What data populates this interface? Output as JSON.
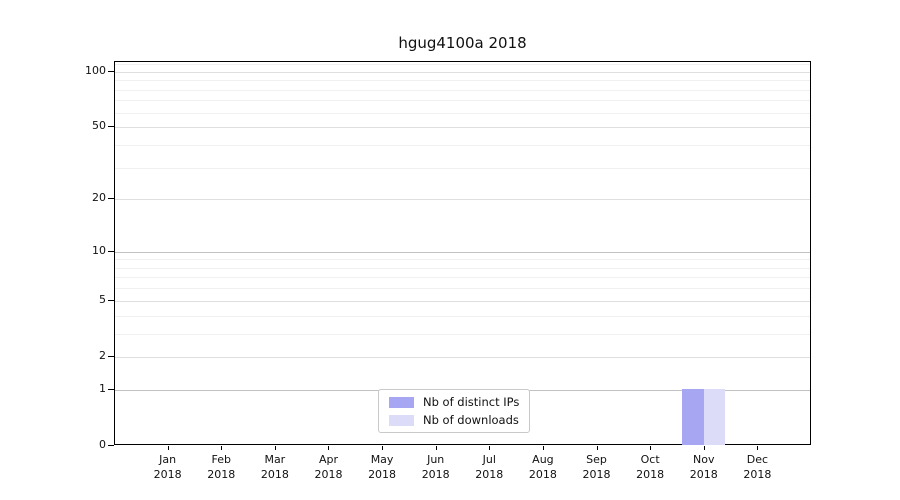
{
  "chart_data": {
    "type": "bar",
    "title": "hgug4100a 2018",
    "categories": [
      "Jan",
      "Feb",
      "Mar",
      "Apr",
      "May",
      "Jun",
      "Jul",
      "Aug",
      "Sep",
      "Oct",
      "Nov",
      "Dec"
    ],
    "x_tick_year": "2018",
    "series": [
      {
        "name": "Nb of distinct IPs",
        "color": "#a6a6f2",
        "values": [
          0,
          0,
          0,
          0,
          0,
          0,
          0,
          0,
          0,
          0,
          1,
          0
        ]
      },
      {
        "name": "Nb of downloads",
        "color": "#dcdcf8",
        "values": [
          0,
          0,
          0,
          0,
          0,
          0,
          0,
          0,
          0,
          0,
          1,
          0
        ]
      }
    ],
    "yaxis": {
      "scale": "log1p",
      "ticks": [
        0,
        1,
        2,
        5,
        10,
        20,
        50,
        100
      ],
      "minor_ticks": [
        3,
        4,
        6,
        7,
        8,
        9,
        30,
        40,
        60,
        70,
        80,
        90,
        110
      ],
      "ylim": [
        0,
        113
      ],
      "emphasized_gridlines": [
        1,
        10
      ]
    },
    "grid": "horizontal",
    "legend_position": "lower center",
    "colors": {
      "major_grid": "#dfdfdf",
      "emphasized_grid": "#c2c2c2",
      "minor_grid": "#f0f0f0"
    }
  }
}
